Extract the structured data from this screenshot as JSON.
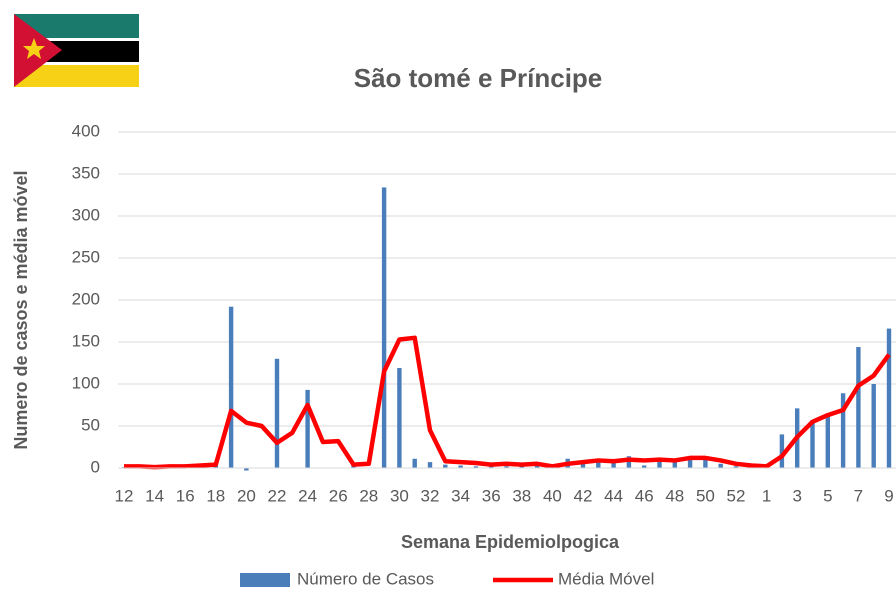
{
  "chart_data": {
    "type": "bar",
    "title": "São tomé e Príncipe",
    "x_label": "Semana Epidemiolpogica",
    "y_label": "Numero de casos e média móvel",
    "categories": [
      "12",
      null,
      "14",
      null,
      "16",
      null,
      "18",
      null,
      "20",
      null,
      "22",
      null,
      "24",
      null,
      "26",
      null,
      "28",
      null,
      "30",
      null,
      "32",
      null,
      "34",
      null,
      "36",
      null,
      "38",
      null,
      "40",
      null,
      "42",
      null,
      "44",
      null,
      "46",
      null,
      "48",
      null,
      "50",
      null,
      "52",
      null,
      "1",
      null,
      "3",
      null,
      "5",
      null,
      "7",
      null,
      "9"
    ],
    "series": [
      {
        "name": "Número de Casos",
        "type": "bar",
        "color": "#4a7ebb",
        "values": [
          1,
          1,
          0,
          1,
          1,
          2,
          3,
          192,
          -3,
          0,
          130,
          0,
          93,
          0,
          0,
          4,
          0,
          334,
          119,
          11,
          7,
          4,
          3,
          2,
          2,
          2,
          3,
          3,
          2,
          11,
          5,
          8,
          8,
          14,
          3,
          8,
          7,
          10,
          10,
          5,
          2,
          1,
          1,
          40,
          71,
          57,
          63,
          89,
          144,
          100,
          166
        ]
      },
      {
        "name": "Média Móvel",
        "type": "line",
        "color": "#ff0000",
        "values": [
          2,
          2,
          1,
          2,
          2,
          3,
          4,
          68,
          54,
          50,
          30,
          42,
          75,
          31,
          32,
          4,
          5,
          115,
          153,
          155,
          45,
          8,
          7,
          6,
          4,
          5,
          4,
          5,
          2,
          5,
          7,
          9,
          8,
          10,
          9,
          10,
          9,
          12,
          12,
          9,
          5,
          3,
          2,
          14,
          37,
          55,
          63,
          69,
          98,
          110,
          135
        ]
      }
    ],
    "ylim": [
      0,
      400
    ],
    "yticks": [
      0,
      50,
      100,
      150,
      200,
      250,
      300,
      350,
      400
    ],
    "grid": true,
    "legend": "bottom"
  }
}
